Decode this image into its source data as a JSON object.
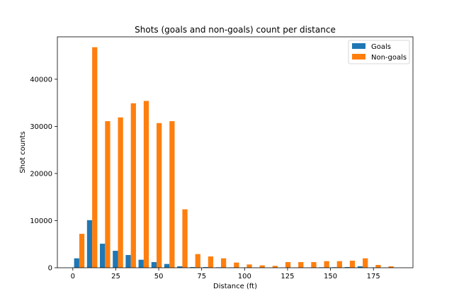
{
  "chart_data": {
    "type": "bar",
    "title": "Shots (goals and non-goals) count per distance",
    "xlabel": "Distance (ft)",
    "ylabel": "Shot counts",
    "xlim": [
      -9,
      198
    ],
    "ylim": [
      0,
      49000
    ],
    "xticks": [
      0,
      25,
      50,
      75,
      100,
      125,
      150,
      175
    ],
    "yticks": [
      0,
      10000,
      20000,
      30000,
      40000
    ],
    "grid": false,
    "legend_position": "top-right",
    "bin_width": 7.5,
    "x": [
      3.75,
      11.25,
      18.75,
      26.25,
      33.75,
      41.25,
      48.75,
      56.25,
      63.75,
      71.25,
      78.75,
      86.25,
      93.75,
      101.25,
      108.75,
      116.25,
      123.75,
      131.25,
      138.75,
      146.25,
      153.75,
      161.25,
      168.75,
      176.25,
      183.75
    ],
    "series": [
      {
        "name": "Goals",
        "color": "#1f77b4",
        "values": [
          2000,
          10100,
          5100,
          3600,
          2700,
          1700,
          1200,
          800,
          300,
          150,
          150,
          100,
          80,
          60,
          50,
          40,
          50,
          50,
          60,
          100,
          120,
          150,
          300,
          80,
          30
        ]
      },
      {
        "name": "Non-goals",
        "color": "#ff7f0e",
        "values": [
          7200,
          46800,
          31100,
          31900,
          34900,
          35400,
          30700,
          31100,
          12400,
          2900,
          2400,
          2000,
          1100,
          700,
          500,
          400,
          1200,
          1200,
          1200,
          1400,
          1400,
          1500,
          2000,
          600,
          300
        ]
      }
    ]
  }
}
